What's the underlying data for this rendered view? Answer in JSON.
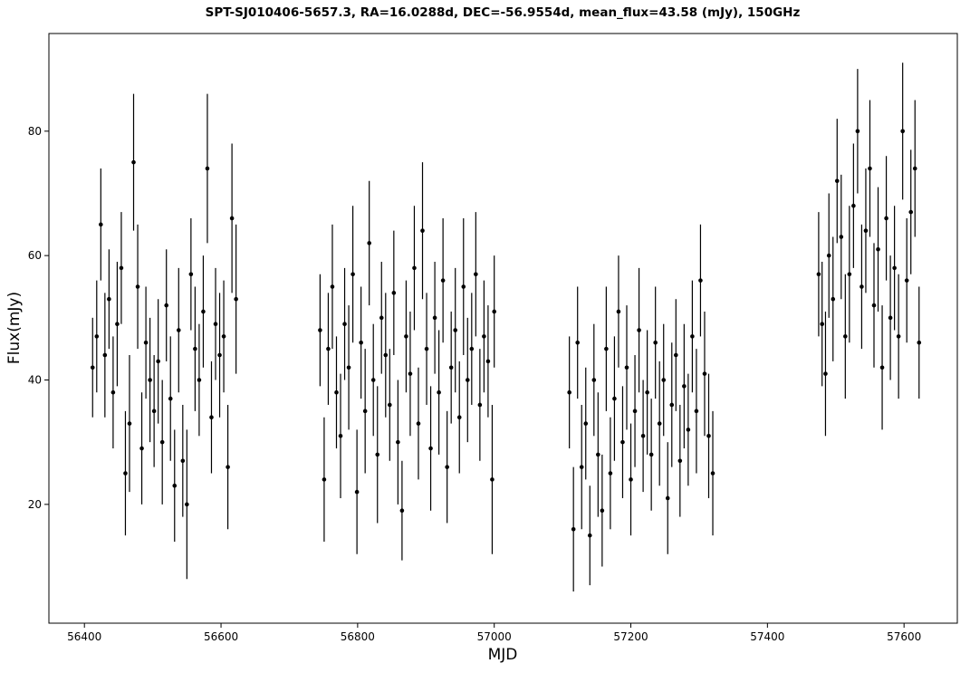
{
  "chart_data": {
    "type": "errorbar",
    "title": "SPT-SJ010406-5657.3, RA=16.0288d, DEC=-56.9554d, mean_flux=43.58 (mJy), 150GHz",
    "xlabel": "MJD",
    "ylabel": "Flux(mJy)",
    "color": "#000000",
    "x": [
      56412,
      56418,
      56424,
      56430,
      56436,
      56442,
      56448,
      56454,
      56460,
      56466,
      56472,
      56478,
      56484,
      56490,
      56496,
      56502,
      56508,
      56514,
      56520,
      56526,
      56532,
      56538,
      56544,
      56550,
      56556,
      56562,
      56568,
      56574,
      56580,
      56586,
      56592,
      56598,
      56604,
      56610,
      56616,
      56622,
      56745,
      56751,
      56757,
      56763,
      56769,
      56775,
      56781,
      56787,
      56793,
      56799,
      56805,
      56811,
      56817,
      56823,
      56829,
      56835,
      56841,
      56847,
      56853,
      56859,
      56865,
      56871,
      56877,
      56883,
      56889,
      56895,
      56901,
      56907,
      56913,
      56919,
      56925,
      56931,
      56937,
      56943,
      56949,
      56955,
      56961,
      56967,
      56973,
      56979,
      56985,
      56991,
      56997,
      57000,
      57110,
      57116,
      57122,
      57128,
      57134,
      57140,
      57146,
      57152,
      57158,
      57164,
      57170,
      57176,
      57182,
      57188,
      57194,
      57200,
      57206,
      57212,
      57218,
      57224,
      57230,
      57236,
      57242,
      57248,
      57254,
      57260,
      57266,
      57272,
      57278,
      57284,
      57290,
      57296,
      57302,
      57308,
      57314,
      57320,
      57475,
      57480,
      57485,
      57490,
      57496,
      57502,
      57508,
      57514,
      57520,
      57526,
      57532,
      57538,
      57544,
      57550,
      57556,
      57562,
      57568,
      57574,
      57580,
      57586,
      57592,
      57598,
      57604,
      57610,
      57616,
      57622
    ],
    "values": [
      42,
      47,
      65,
      44,
      53,
      38,
      49,
      58,
      25,
      33,
      75,
      55,
      29,
      46,
      40,
      35,
      43,
      30,
      52,
      37,
      23,
      48,
      27,
      20,
      57,
      45,
      40,
      51,
      74,
      34,
      49,
      44,
      47,
      26,
      66,
      53,
      48,
      24,
      45,
      55,
      38,
      31,
      49,
      42,
      57,
      22,
      46,
      35,
      62,
      40,
      28,
      50,
      44,
      36,
      54,
      30,
      19,
      47,
      41,
      58,
      33,
      64,
      45,
      29,
      50,
      38,
      56,
      26,
      42,
      48,
      34,
      55,
      40,
      45,
      57,
      36,
      47,
      43,
      24,
      51,
      38,
      16,
      46,
      26,
      33,
      15,
      40,
      28,
      19,
      45,
      25,
      37,
      51,
      30,
      42,
      24,
      35,
      48,
      31,
      38,
      28,
      46,
      33,
      40,
      21,
      36,
      44,
      27,
      39,
      32,
      47,
      35,
      56,
      41,
      31,
      25,
      57,
      49,
      41,
      60,
      53,
      72,
      63,
      47,
      57,
      68,
      80,
      55,
      64,
      74,
      52,
      61,
      42,
      66,
      50,
      58,
      47,
      80,
      56,
      67,
      74,
      46
    ],
    "errors": [
      8,
      9,
      9,
      10,
      8,
      9,
      10,
      9,
      10,
      11,
      11,
      10,
      9,
      9,
      10,
      9,
      10,
      10,
      9,
      10,
      9,
      10,
      9,
      12,
      9,
      10,
      9,
      9,
      12,
      9,
      9,
      10,
      9,
      10,
      12,
      12,
      9,
      10,
      9,
      10,
      9,
      10,
      9,
      10,
      11,
      10,
      9,
      10,
      10,
      9,
      11,
      9,
      10,
      9,
      10,
      10,
      8,
      9,
      10,
      10,
      9,
      11,
      9,
      10,
      9,
      10,
      10,
      9,
      9,
      10,
      9,
      11,
      10,
      9,
      10,
      9,
      9,
      9,
      12,
      9,
      9,
      10,
      9,
      10,
      9,
      8,
      9,
      10,
      9,
      10,
      9,
      10,
      9,
      9,
      10,
      9,
      9,
      10,
      9,
      10,
      9,
      9,
      10,
      9,
      9,
      10,
      9,
      9,
      10,
      9,
      9,
      10,
      9,
      10,
      10,
      10,
      10,
      10,
      10,
      10,
      10,
      10,
      10,
      10,
      11,
      10,
      10,
      10,
      10,
      11,
      10,
      10,
      10,
      10,
      10,
      10,
      10,
      11,
      10,
      10,
      11,
      9
    ],
    "xlim": [
      56348,
      57678
    ],
    "ylim": [
      0.9,
      95.7
    ],
    "xticks": [
      56400,
      56600,
      56800,
      57000,
      57200,
      57400,
      57600
    ],
    "yticks": [
      20,
      40,
      60,
      80
    ]
  }
}
